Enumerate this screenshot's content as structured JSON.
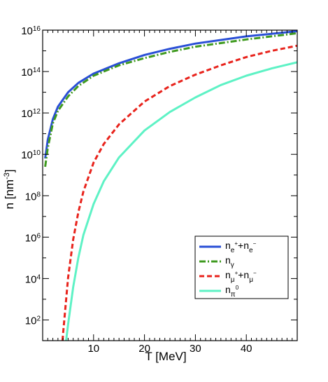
{
  "chart_data": {
    "type": "line",
    "xlabel": "T [MeV]",
    "ylabel": "n [nm^-3]",
    "ylabel_parts": {
      "base": "n [nm",
      "sup": "-3",
      "close": "]"
    },
    "xlim": [
      0,
      50
    ],
    "ylim_log10": [
      1,
      16
    ],
    "yscale": "log",
    "x_ticks": [
      10,
      20,
      30,
      40
    ],
    "y_ticks": [
      {
        "exp": 2,
        "base": "10",
        "sup": "2"
      },
      {
        "exp": 4,
        "base": "10",
        "sup": "4"
      },
      {
        "exp": 6,
        "base": "10",
        "sup": "6"
      },
      {
        "exp": 8,
        "base": "10",
        "sup": "8"
      },
      {
        "exp": 10,
        "base": "10",
        "sup": "10"
      },
      {
        "exp": 12,
        "base": "10",
        "sup": "12"
      },
      {
        "exp": 14,
        "base": "10",
        "sup": "14"
      },
      {
        "exp": 16,
        "base": "10",
        "sup": "16"
      }
    ],
    "legend_position": "lower-right",
    "series": [
      {
        "name": "n_e+ + n_e-",
        "legend": {
          "a": "n",
          "a_sub": "e",
          "a_sup": "+",
          "plus": "+",
          "b": "n",
          "b_sub": "e",
          "b_sup": "−"
        },
        "color": "#2a4fd6",
        "dash": "solid",
        "x": [
          0.5,
          1,
          2,
          3,
          5,
          7,
          10,
          15,
          20,
          25,
          30,
          40,
          50
        ],
        "log10_n": [
          9.8,
          10.7,
          11.7,
          12.3,
          13.0,
          13.45,
          13.9,
          14.4,
          14.8,
          15.1,
          15.35,
          15.7,
          15.95
        ]
      },
      {
        "name": "n_gamma",
        "legend": {
          "a": "n",
          "a_sub": "γ"
        },
        "color": "#3f9a1f",
        "dash": "dashdot",
        "x": [
          0.5,
          1,
          2,
          3,
          5,
          7,
          10,
          15,
          20,
          25,
          30,
          40,
          50
        ],
        "log10_n": [
          9.4,
          10.3,
          11.5,
          12.1,
          12.8,
          13.3,
          13.8,
          14.3,
          14.65,
          14.95,
          15.2,
          15.55,
          15.85
        ]
      },
      {
        "name": "n_mu+ + n_mu-",
        "legend": {
          "a": "n",
          "a_sub": "μ",
          "a_sup": "+",
          "plus": "+",
          "b": "n",
          "b_sub": "μ",
          "b_sup": "−"
        },
        "color": "#e8231c",
        "dash": "dashed",
        "x": [
          3.9,
          4,
          5,
          6,
          7,
          8,
          10,
          12,
          15,
          20,
          25,
          30,
          35,
          40,
          45,
          50
        ],
        "log10_n": [
          1,
          1.3,
          4.05,
          5.9,
          7.2,
          8.2,
          9.6,
          10.5,
          11.45,
          12.55,
          13.3,
          13.85,
          14.3,
          14.7,
          15.0,
          15.25
        ]
      },
      {
        "name": "n_pi0",
        "legend": {
          "a": "n",
          "a_sub": "π",
          "a_sup": "0"
        },
        "color": "#5ef2c5",
        "dash": "solid",
        "x": [
          4.6,
          5,
          6,
          7,
          8,
          10,
          12,
          15,
          20,
          25,
          30,
          35,
          40,
          45,
          50
        ],
        "log10_n": [
          1,
          1.8,
          3.6,
          5.0,
          6.1,
          7.6,
          8.7,
          9.85,
          11.15,
          12.05,
          12.75,
          13.35,
          13.8,
          14.15,
          14.45
        ]
      }
    ]
  }
}
